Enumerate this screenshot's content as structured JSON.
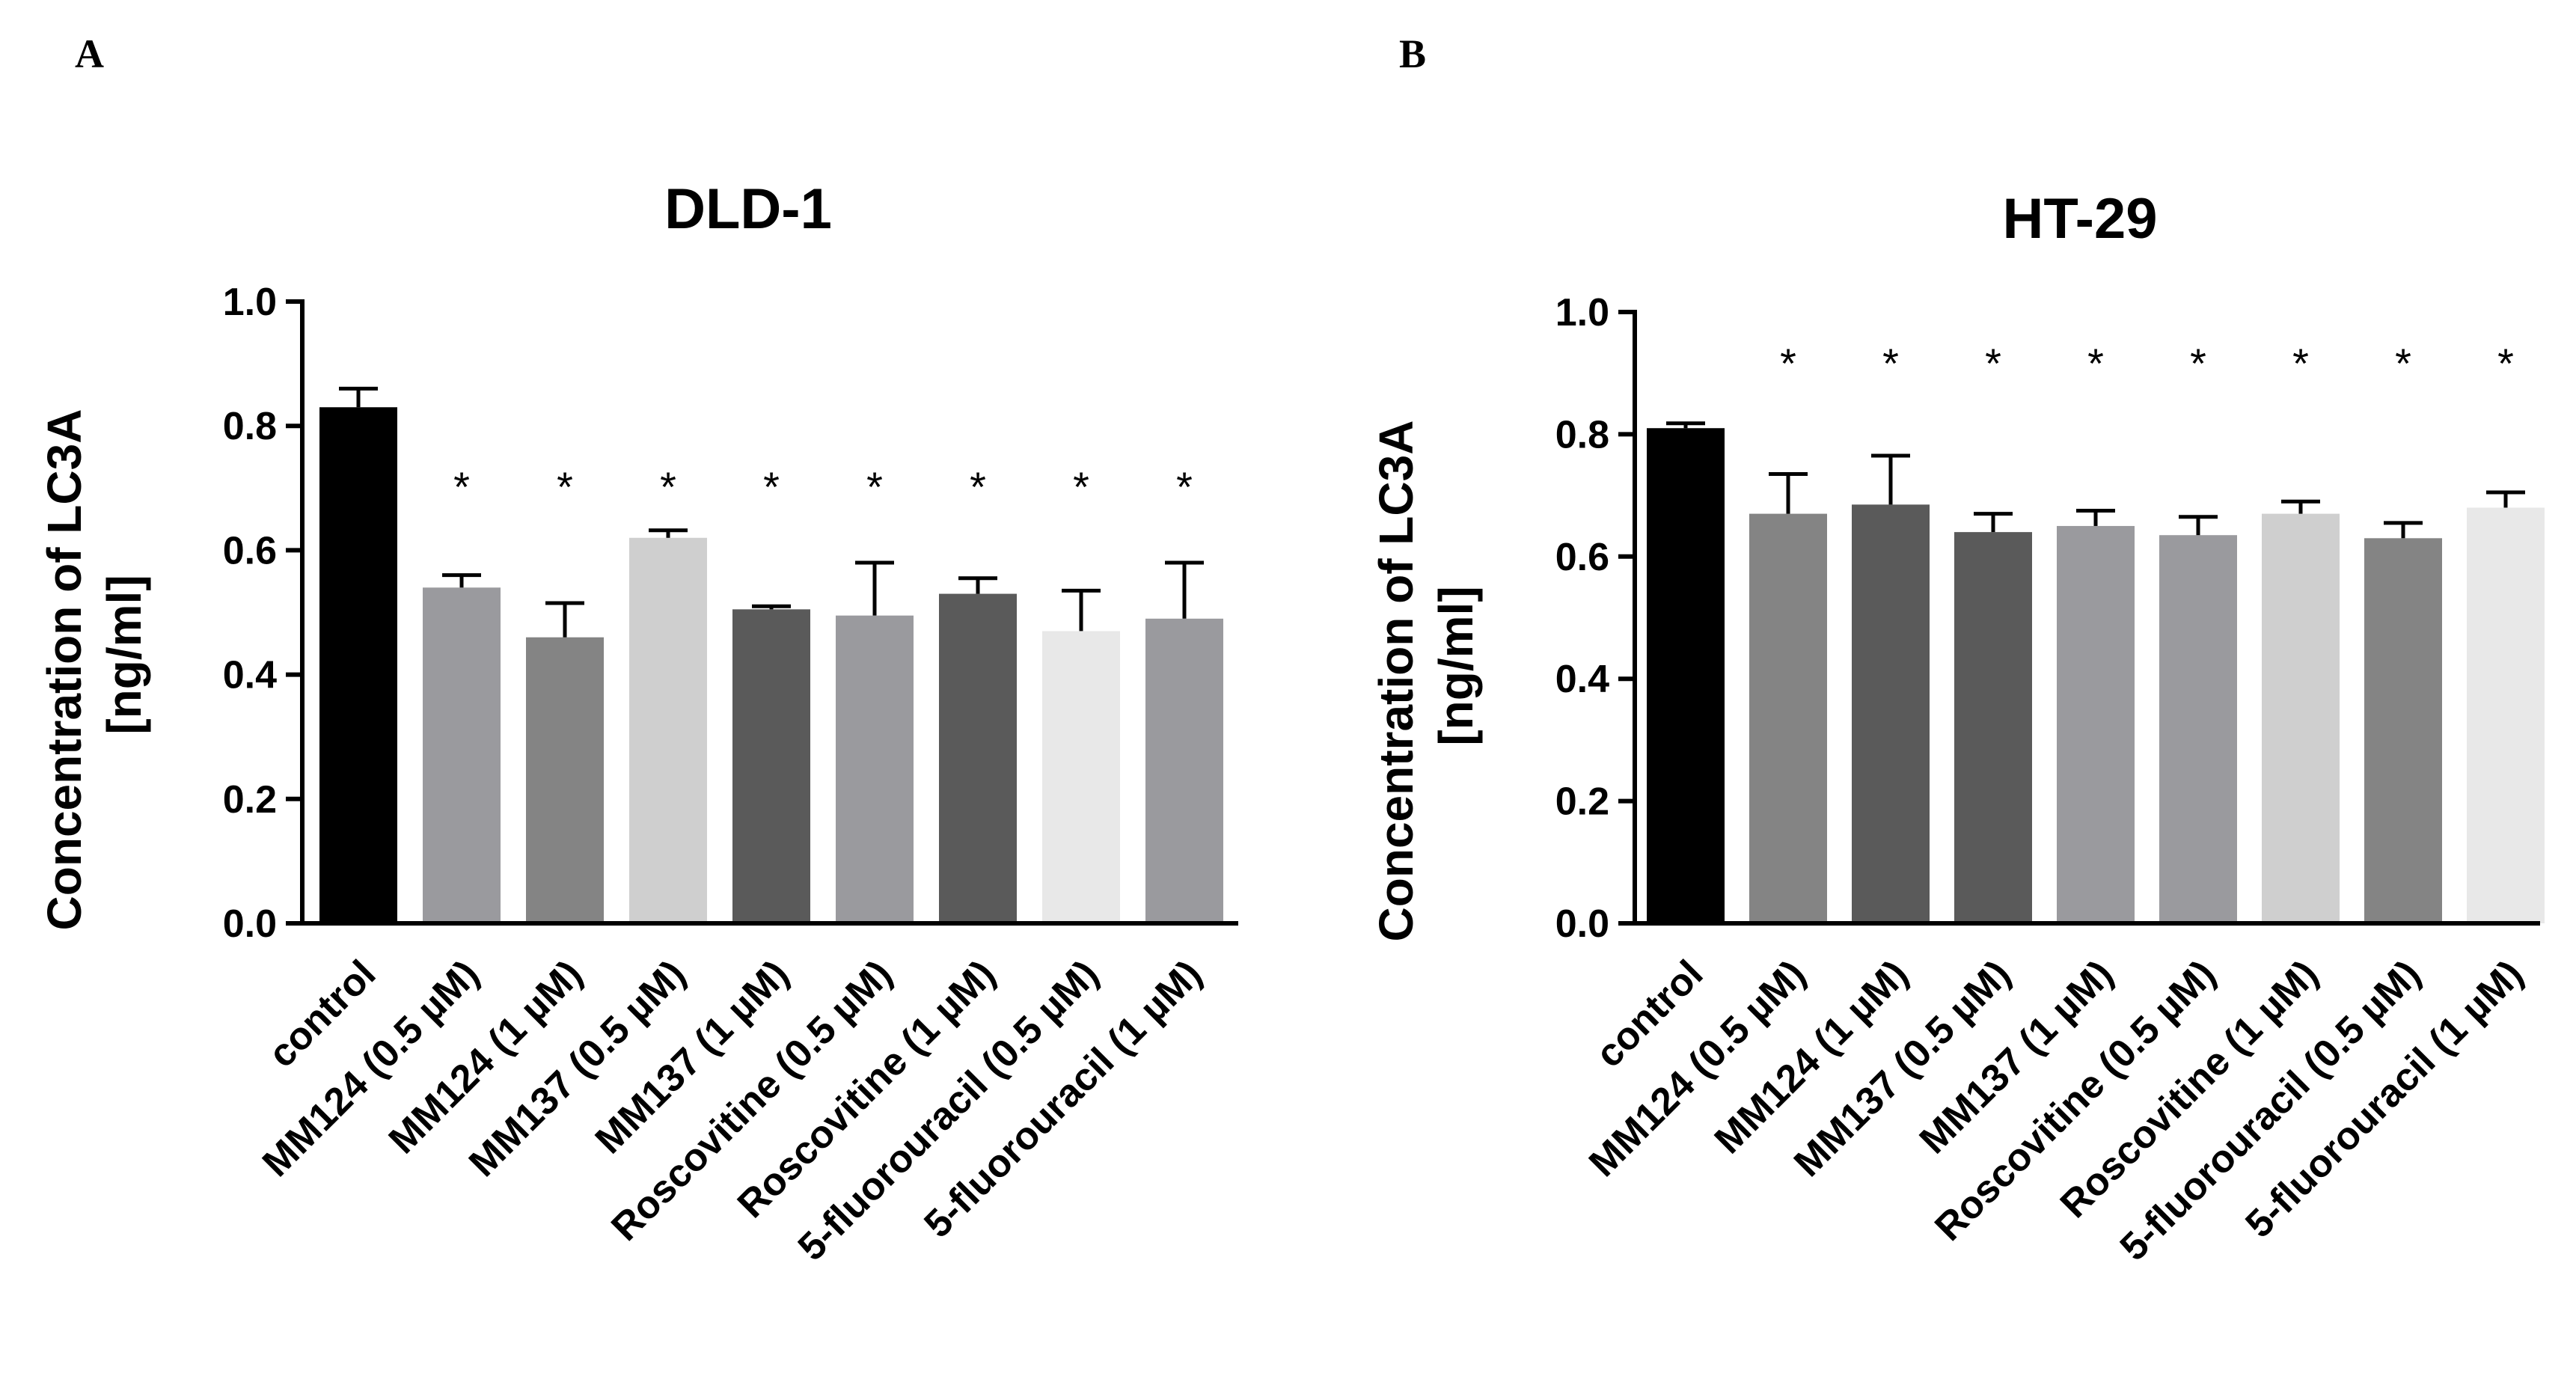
{
  "colors": {
    "black": "#000000",
    "dark": "#5a5a5a",
    "medium_dark": "#6e6e6e",
    "medium": "#848484",
    "medium_light": "#9a9a9e",
    "light": "#cfcfcf",
    "lightest": "#e8e8e8"
  },
  "chart_data": [
    {
      "panel": "A",
      "type": "bar",
      "title": "DLD-1",
      "ylabel_line1": "Concentration of LC3A",
      "ylabel_line2": "[ng/ml]",
      "xlabel": "",
      "ylim": [
        0,
        1.0
      ],
      "yticks": [
        "0.0",
        "0.2",
        "0.4",
        "0.6",
        "0.8",
        "1.0"
      ],
      "categories": [
        "control",
        "MM124 (0.5 µM)",
        "MM124 (1 µM)",
        "MM137 (0.5 µM)",
        "MM137 (1 µM)",
        "Roscovitine (0.5 µM)",
        "Roscovitine (1 µM)",
        "5-fluorouracil  (0.5 µM)",
        "5-fluorouracil  (1 µM)"
      ],
      "values": [
        0.83,
        0.54,
        0.46,
        0.62,
        0.505,
        0.495,
        0.53,
        0.47,
        0.49
      ],
      "errors": [
        0.03,
        0.02,
        0.055,
        0.012,
        0.005,
        0.085,
        0.025,
        0.065,
        0.09
      ],
      "bar_colors": [
        "black",
        "medium_light",
        "medium",
        "light",
        "dark",
        "medium_light",
        "dark",
        "lightest",
        "medium_light"
      ],
      "significance": [
        "",
        "*",
        "*",
        "*",
        "*",
        "*",
        "*",
        "*",
        "*"
      ]
    },
    {
      "panel": "B",
      "type": "bar",
      "title": "HT-29",
      "ylabel_line1": "Concentration of LC3A",
      "ylabel_line2": "[ng/ml]",
      "xlabel": "",
      "ylim": [
        0,
        1.0
      ],
      "yticks": [
        "0.0",
        "0.2",
        "0.4",
        "0.6",
        "0.8",
        "1.0"
      ],
      "categories": [
        "control",
        "MM124 (0.5 µM)",
        "MM124 (1 µM)",
        "MM137 (0.5 µM)",
        "MM137 (1 µM)",
        "Roscovitine (0.5 µM)",
        "Roscovitine (1 µM)",
        "5-fluorouracil  (0.5 µM)",
        "5-fluorouracil  (1 µM)"
      ],
      "values": [
        0.81,
        0.67,
        0.685,
        0.64,
        0.65,
        0.635,
        0.67,
        0.63,
        0.68
      ],
      "errors": [
        0.008,
        0.065,
        0.08,
        0.03,
        0.025,
        0.03,
        0.02,
        0.025,
        0.025
      ],
      "bar_colors": [
        "black",
        "medium",
        "dark",
        "dark",
        "medium_light",
        "medium_light",
        "light",
        "medium",
        "lightest"
      ],
      "significance": [
        "",
        "*",
        "*",
        "*",
        "*",
        "*",
        "*",
        "*",
        "*"
      ]
    }
  ]
}
